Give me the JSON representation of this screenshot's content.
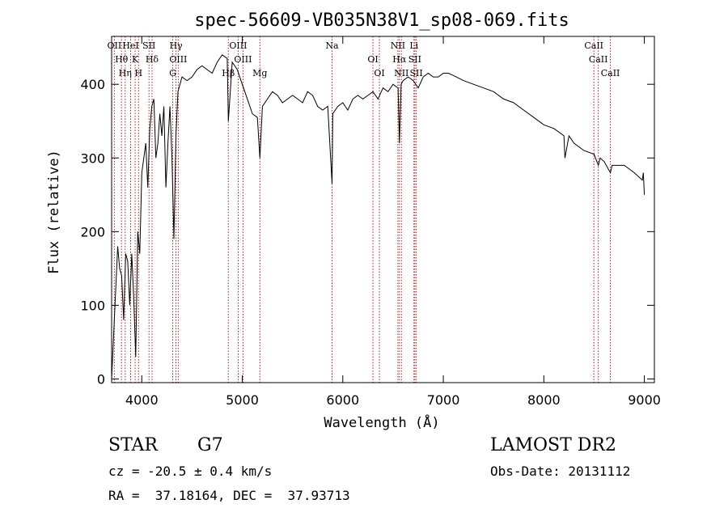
{
  "chart_data": {
    "type": "line",
    "title": "spec-56609-VB035N38V1_sp08-069.fits",
    "xlabel": "Wavelength (Å)",
    "ylabel": "Flux (relative)",
    "xlim": [
      3700,
      9100
    ],
    "ylim": [
      -5,
      465
    ],
    "x_ticks": [
      4000,
      5000,
      6000,
      7000,
      8000,
      9000
    ],
    "y_ticks": [
      0,
      100,
      200,
      300,
      400
    ],
    "grid": false,
    "line_color": "#000000",
    "marker_color": "#b22222",
    "series": [
      {
        "x": [
          3700,
          3720,
          3740,
          3760,
          3780,
          3800,
          3820,
          3840,
          3860,
          3880,
          3900,
          3920,
          3940,
          3960,
          3980,
          4000,
          4020,
          4040,
          4060,
          4080,
          4100,
          4120,
          4140,
          4160,
          4180,
          4200,
          4220,
          4240,
          4260,
          4280,
          4300,
          4320,
          4340,
          4360,
          4380,
          4400,
          4450,
          4500,
          4550,
          4600,
          4650,
          4700,
          4750,
          4800,
          4850,
          4861,
          4900,
          4950,
          5000,
          5050,
          5100,
          5150,
          5175,
          5200,
          5250,
          5300,
          5350,
          5400,
          5450,
          5500,
          5550,
          5600,
          5650,
          5700,
          5750,
          5800,
          5850,
          5893,
          5900,
          5950,
          6000,
          6050,
          6100,
          6150,
          6200,
          6250,
          6300,
          6350,
          6400,
          6450,
          6500,
          6550,
          6563,
          6580,
          6600,
          6650,
          6700,
          6750,
          6800,
          6850,
          6900,
          6950,
          7000,
          7050,
          7100,
          7200,
          7300,
          7400,
          7500,
          7600,
          7700,
          7800,
          7900,
          8000,
          8100,
          8200,
          8210,
          8250,
          8300,
          8400,
          8500,
          8542,
          8560,
          8600,
          8662,
          8680,
          8700,
          8800,
          8900,
          8980,
          8990,
          9000
        ],
        "y": [
          0,
          60,
          120,
          180,
          150,
          140,
          80,
          170,
          160,
          100,
          170,
          110,
          30,
          200,
          170,
          280,
          300,
          320,
          260,
          340,
          370,
          380,
          300,
          320,
          360,
          330,
          370,
          260,
          320,
          370,
          300,
          190,
          330,
          390,
          400,
          410,
          405,
          410,
          420,
          425,
          420,
          415,
          430,
          440,
          435,
          350,
          430,
          420,
          400,
          380,
          360,
          355,
          300,
          370,
          380,
          390,
          385,
          375,
          380,
          385,
          380,
          375,
          390,
          385,
          370,
          365,
          370,
          265,
          360,
          370,
          375,
          365,
          380,
          385,
          380,
          385,
          390,
          380,
          395,
          390,
          400,
          395,
          320,
          400,
          405,
          410,
          405,
          395,
          410,
          415,
          410,
          410,
          415,
          415,
          412,
          405,
          400,
          395,
          390,
          380,
          375,
          365,
          355,
          345,
          340,
          330,
          300,
          330,
          320,
          310,
          305,
          290,
          300,
          295,
          280,
          290,
          290,
          290,
          280,
          270,
          280,
          250
        ]
      }
    ],
    "line_markers": [
      {
        "x": 3727,
        "name": "OII"
      },
      {
        "x": 3798,
        "name": "Hθ"
      },
      {
        "x": 3835,
        "name": "Hη"
      },
      {
        "x": 3889,
        "name": "HeI"
      },
      {
        "x": 3934,
        "name": "K"
      },
      {
        "x": 3968,
        "name": "H"
      },
      {
        "x": 4072,
        "name": "SII"
      },
      {
        "x": 4102,
        "name": "Hδ"
      },
      {
        "x": 4308,
        "name": "G"
      },
      {
        "x": 4340,
        "name": "Hγ"
      },
      {
        "x": 4363,
        "name": "OIII"
      },
      {
        "x": 4861,
        "name": "Hβ"
      },
      {
        "x": 4959,
        "name": "OIII"
      },
      {
        "x": 5007,
        "name": "OIII"
      },
      {
        "x": 5175,
        "name": "Mg"
      },
      {
        "x": 5893,
        "name": "Na"
      },
      {
        "x": 6300,
        "name": "OI"
      },
      {
        "x": 6364,
        "name": "OI"
      },
      {
        "x": 6548,
        "name": "NII"
      },
      {
        "x": 6563,
        "name": "Hα"
      },
      {
        "x": 6583,
        "name": "NII"
      },
      {
        "x": 6708,
        "name": "Li"
      },
      {
        "x": 6717,
        "name": "SII"
      },
      {
        "x": 6731,
        "name": "SII"
      },
      {
        "x": 8498,
        "name": "CaII"
      },
      {
        "x": 8542,
        "name": "CaII"
      },
      {
        "x": 8662,
        "name": "CaII"
      }
    ]
  },
  "info": {
    "object_class": "STAR",
    "subclass": "G7",
    "survey": "LAMOST DR2",
    "redshift": "cz = -20.5 ± 0.4 km/s",
    "obs_date": "Obs-Date: 20131112",
    "coords": "RA =  37.18164, DEC =  37.93713"
  }
}
